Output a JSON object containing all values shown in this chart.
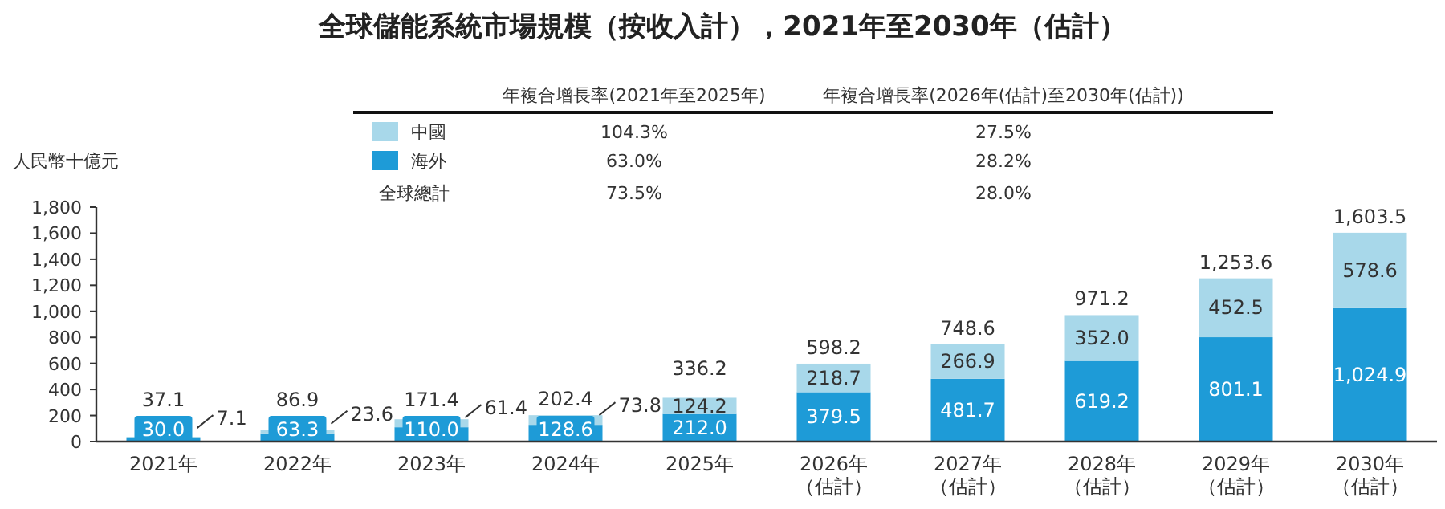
{
  "chart_data": {
    "type": "bar",
    "title": "全球儲能系統市場規模（按收入計），2021年至2030年（估計）",
    "ylabel": "人民幣十億元",
    "categories": [
      "2021年",
      "2022年",
      "2023年",
      "2024年",
      "2025年",
      "2026年（估計）",
      "2027年（估計）",
      "2028年（估計）",
      "2029年（估計）",
      "2030年（估計）"
    ],
    "stacked": true,
    "legend": "top",
    "series": [
      {
        "name": "海外",
        "color": "#1e9bd7",
        "values": [
          30.0,
          63.3,
          110.0,
          128.6,
          212.0,
          379.5,
          481.7,
          619.2,
          801.1,
          1024.9
        ],
        "value_labels": [
          "30.0",
          "63.3",
          "110.0",
          "128.6",
          "212.0",
          "379.5",
          "481.7",
          "619.2",
          "801.1",
          "1,024.9"
        ]
      },
      {
        "name": "中國",
        "color": "#a8d8ea",
        "values": [
          7.1,
          23.6,
          61.4,
          73.8,
          124.2,
          218.7,
          266.9,
          352.0,
          452.5,
          578.6
        ],
        "value_labels": [
          "7.1",
          "23.6",
          "61.4",
          "73.8",
          "124.2",
          "218.7",
          "266.9",
          "352.0",
          "452.5",
          "578.6"
        ]
      }
    ],
    "totals": [
      "37.1",
      "86.9",
      "171.4",
      "202.4",
      "336.2",
      "598.2",
      "748.6",
      "971.2",
      "1,253.6",
      "1,603.5"
    ],
    "ylim": [
      0,
      1800
    ],
    "yticks": [
      0,
      200,
      400,
      600,
      800,
      {
        "value": 1000,
        "label": "1,000"
      },
      {
        "value": 1200,
        "label": "1,200"
      },
      {
        "value": 1400,
        "label": "1,400"
      },
      {
        "value": 1600,
        "label": "1,600"
      },
      {
        "value": 1800,
        "label": "1,800"
      }
    ],
    "annotations": [
      "年複合增長率(2021年至2025年)",
      "年複合增長率(2026年(估計)至2030年(估計))",
      "104.3%",
      "27.5%",
      "63.0%",
      "28.2%",
      "全球總計",
      "73.5%",
      "28.0%"
    ]
  }
}
